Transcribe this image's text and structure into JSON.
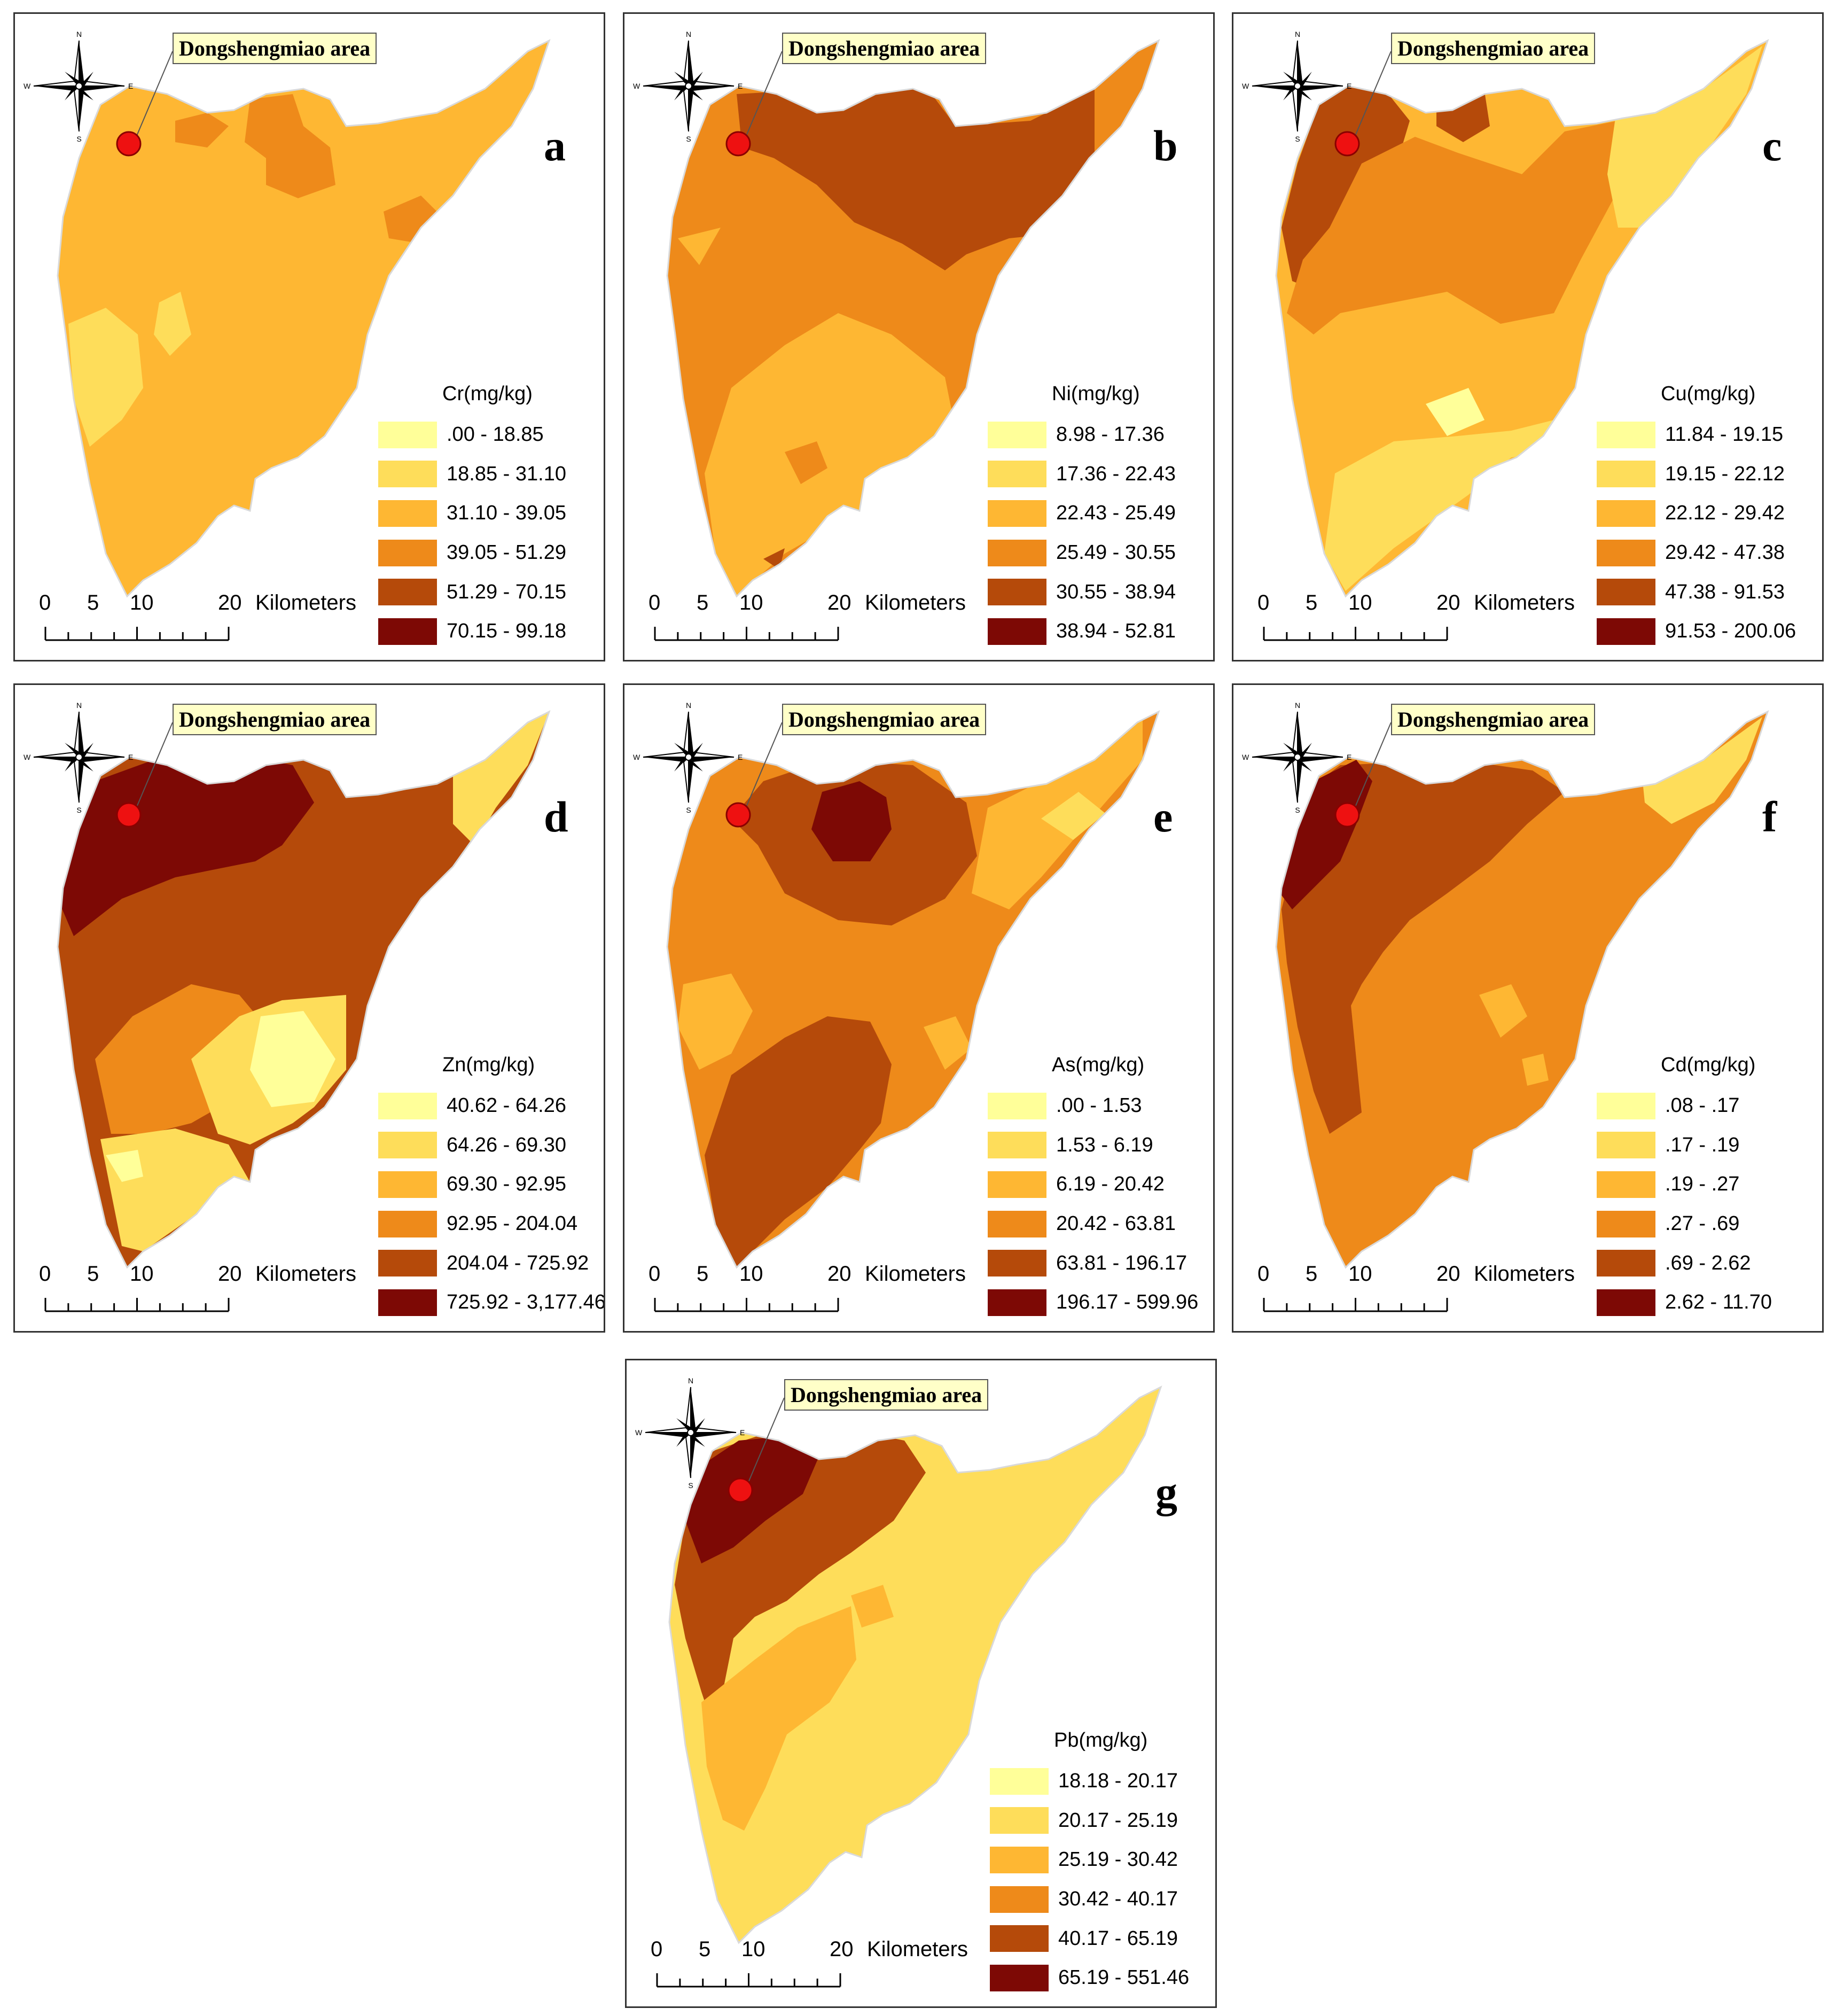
{
  "figure": {
    "callout_text": "Dongshengmiao area",
    "scale_bar": {
      "ticks": [
        "0",
        "5",
        "10",
        "20"
      ],
      "unit": "Kilometers"
    },
    "compass": {
      "n": "N",
      "s": "S",
      "e": "E",
      "w": "W"
    },
    "colors": [
      "#ffff99",
      "#fedd5a",
      "#feb733",
      "#ee8a1a",
      "#b54a0a",
      "#7d0905"
    ],
    "outline_color": "#d9d9d9",
    "site_marker_color": "#ee1111"
  },
  "panels": [
    {
      "letter": "a",
      "legend_title": "Cr(mg/kg)",
      "classes": [
        ".00 - 18.85",
        "18.85 - 31.10",
        "31.10 - 39.05",
        "39.05 - 51.29",
        "51.29 - 70.15",
        "70.15 - 99.18"
      ]
    },
    {
      "letter": "b",
      "legend_title": "Ni(mg/kg)",
      "classes": [
        "8.98 - 17.36",
        "17.36 - 22.43",
        "22.43 - 25.49",
        "25.49 - 30.55",
        "30.55 - 38.94",
        "38.94 - 52.81"
      ]
    },
    {
      "letter": "c",
      "legend_title": "Cu(mg/kg)",
      "classes": [
        "11.84 - 19.15",
        "19.15 - 22.12",
        "22.12 - 29.42",
        "29.42 - 47.38",
        "47.38 - 91.53",
        "91.53 - 200.06"
      ]
    },
    {
      "letter": "d",
      "legend_title": "Zn(mg/kg)",
      "classes": [
        "40.62 - 64.26",
        "64.26 - 69.30",
        "69.30 - 92.95",
        "92.95 - 204.04",
        "204.04 - 725.92",
        "725.92 - 3,177.46"
      ]
    },
    {
      "letter": "e",
      "legend_title": "As(mg/kg)",
      "classes": [
        ".00 - 1.53",
        "1.53 - 6.19",
        "6.19 - 20.42",
        "20.42 - 63.81",
        "63.81 - 196.17",
        "196.17 - 599.96"
      ]
    },
    {
      "letter": "f",
      "legend_title": "Cd(mg/kg)",
      "classes": [
        ".08 - .17",
        ".17 - .19",
        ".19 - .27",
        ".27 - .69",
        ".69 - 2.62",
        "2.62 - 11.70"
      ]
    },
    {
      "letter": "g",
      "legend_title": "Pb(mg/kg)",
      "classes": [
        "18.18 - 20.17",
        "20.17 - 25.19",
        "25.19 - 30.42",
        "30.42 - 40.17",
        "40.17 - 65.19",
        "65.19 - 551.46"
      ]
    }
  ]
}
